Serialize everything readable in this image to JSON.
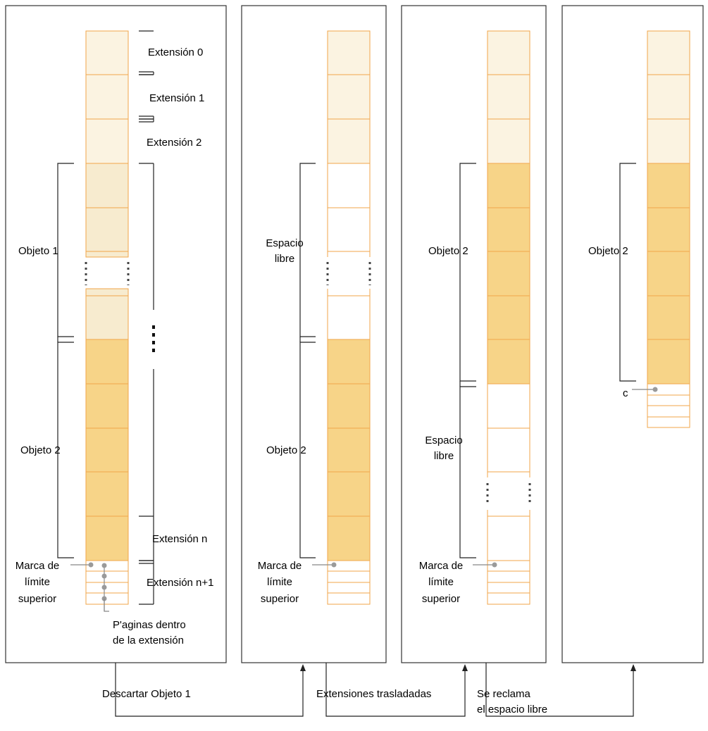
{
  "labels": {
    "extension_0": "Extensión 0",
    "extension_1": "Extensión 1",
    "extension_2": "Extensión 2",
    "extension_n": "Extensión n",
    "extension_n1": "Extensión n+1",
    "object_1": "Objeto 1",
    "object_2": "Objeto 2",
    "free_space_1": "Espacio",
    "free_space_2": "libre",
    "hwm_1": "Marca de",
    "hwm_2": "límite",
    "hwm_3": "superior",
    "pages_1": "P'aginas dentro",
    "pages_2": "de la extensión",
    "c_label": "c"
  },
  "steps": {
    "drop_object": "Descartar Objeto 1",
    "extents_moved": "Extensiones trasladadas",
    "reclaim_1": "Se reclama",
    "reclaim_2": "el espacio libre"
  },
  "colors": {
    "cell_border": "#f0a64a",
    "extent_light": "#fbf3e1",
    "object1_fill": "#f7ebcf",
    "object2_fill": "#f7d488"
  }
}
